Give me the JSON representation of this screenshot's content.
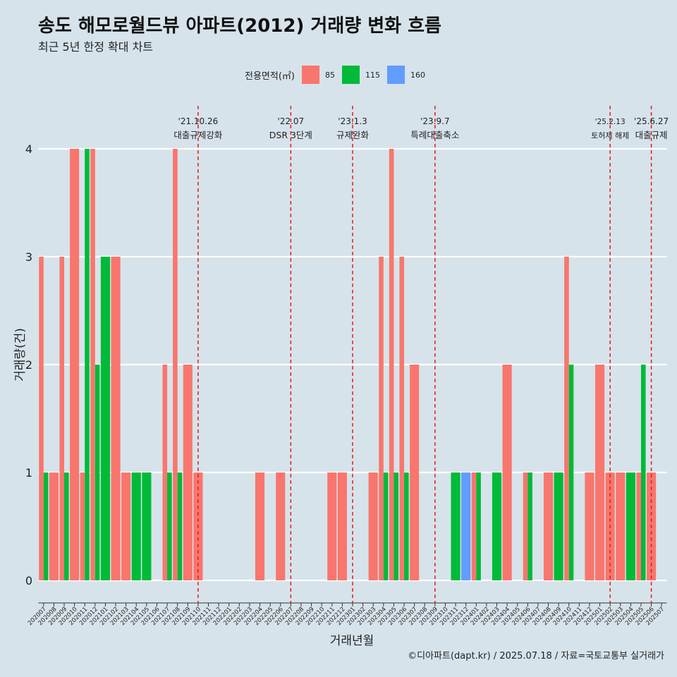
{
  "title": "송도 해모로월드뷰 아파트(2012) 거래량 변화 흐름",
  "subtitle": "최근 5년 한정 확대 차트",
  "caption": "©디아파트(dapt.kr) / 2025.07.18 / 자료=국토교통부 실거래가",
  "legend": {
    "title": "전용면적(㎡)",
    "items": [
      {
        "label": "85",
        "color": "#f8766d"
      },
      {
        "label": "115",
        "color": "#00ba38"
      },
      {
        "label": "160",
        "color": "#619cff"
      }
    ]
  },
  "chart_data": {
    "type": "bar",
    "xlabel": "거래년월",
    "ylabel": "거래량(건)",
    "ylim": [
      0,
      4
    ],
    "yticks": [
      0,
      1,
      2,
      3,
      4
    ],
    "grid": true,
    "legend_position": "top",
    "categories": [
      "202007",
      "202008",
      "202009",
      "202010",
      "202011",
      "202012",
      "202101",
      "202102",
      "202103",
      "202104",
      "202105",
      "202106",
      "202107",
      "202108",
      "202109",
      "202110",
      "202111",
      "202112",
      "202201",
      "202202",
      "202203",
      "202204",
      "202205",
      "202206",
      "202207",
      "202208",
      "202209",
      "202210",
      "202211",
      "202212",
      "202301",
      "202302",
      "202303",
      "202304",
      "202305",
      "202306",
      "202307",
      "202308",
      "202309",
      "202310",
      "202311",
      "202312",
      "202401",
      "202402",
      "202403",
      "202404",
      "202405",
      "202406",
      "202407",
      "202408",
      "202409",
      "202410",
      "202411",
      "202412",
      "202501",
      "202502",
      "202503",
      "202504",
      "202505",
      "202506",
      "202507"
    ],
    "series": [
      {
        "name": "85",
        "color": "#f8766d",
        "values": [
          3,
          1,
          3,
          4,
          1,
          4,
          0,
          3,
          1,
          0,
          0,
          0,
          2,
          4,
          2,
          1,
          0,
          0,
          0,
          0,
          0,
          1,
          0,
          1,
          0,
          0,
          0,
          0,
          1,
          1,
          0,
          0,
          1,
          3,
          4,
          3,
          2,
          0,
          0,
          0,
          0,
          0,
          1,
          0,
          0,
          2,
          0,
          1,
          0,
          1,
          0,
          3,
          0,
          1,
          2,
          1,
          1,
          0,
          1,
          1,
          0
        ]
      },
      {
        "name": "115",
        "color": "#00ba38",
        "values": [
          1,
          0,
          1,
          0,
          4,
          2,
          3,
          0,
          0,
          1,
          1,
          0,
          1,
          1,
          0,
          0,
          0,
          0,
          0,
          0,
          0,
          0,
          0,
          0,
          0,
          0,
          0,
          0,
          0,
          0,
          0,
          0,
          0,
          1,
          1,
          1,
          0,
          0,
          0,
          0,
          1,
          0,
          1,
          0,
          1,
          0,
          0,
          1,
          0,
          0,
          1,
          2,
          0,
          0,
          0,
          0,
          0,
          1,
          2,
          0,
          0
        ]
      },
      {
        "name": "160",
        "color": "#619cff",
        "values": [
          0,
          0,
          0,
          0,
          0,
          0,
          0,
          0,
          0,
          0,
          0,
          0,
          0,
          0,
          0,
          0,
          0,
          0,
          0,
          0,
          0,
          0,
          0,
          0,
          0,
          0,
          0,
          0,
          0,
          0,
          0,
          0,
          0,
          0,
          0,
          0,
          0,
          0,
          0,
          0,
          0,
          1,
          0,
          0,
          0,
          0,
          0,
          0,
          0,
          0,
          0,
          0,
          0,
          0,
          0,
          0,
          0,
          0,
          0,
          0,
          0
        ]
      }
    ],
    "annotations": [
      {
        "date": "'21.10.26",
        "label": "대출규제강화",
        "at": "202110"
      },
      {
        "date": "'22.07",
        "label": "DSR 3단계",
        "at": "202207"
      },
      {
        "date": "'23.1.3",
        "label": "규제완화",
        "at": "202301"
      },
      {
        "date": "'23.9.7",
        "label": "특례대출축소",
        "at": "202309"
      },
      {
        "date": "'25.2.13",
        "label": "토허제 해제",
        "at": "202502"
      },
      {
        "date": "'25.6.27",
        "label": "대출규제",
        "at": "202506"
      }
    ]
  }
}
